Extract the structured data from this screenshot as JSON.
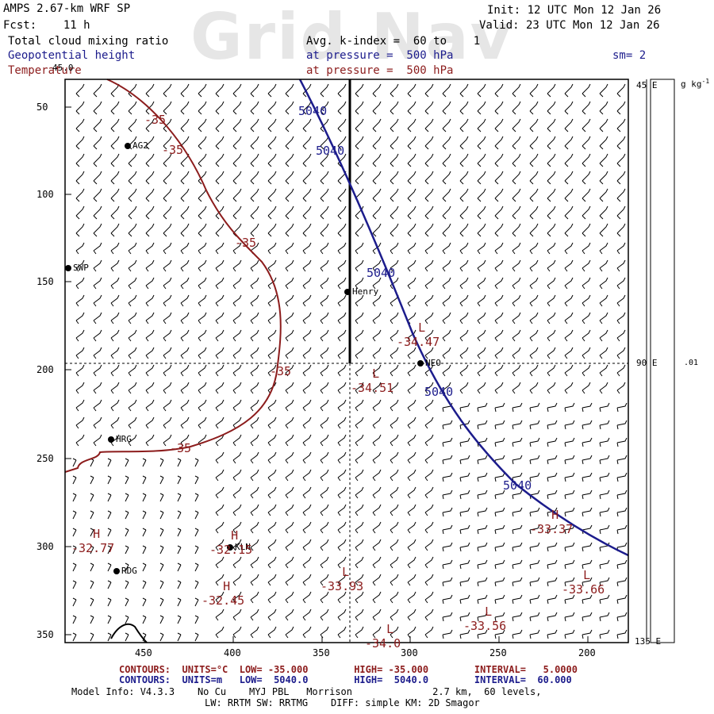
{
  "header": {
    "watermark": "Grid Nav",
    "model_line": "AMPS 2.67-km WRF SP",
    "fcst_line": "Fcst:    11 h",
    "init_line": "Init: 12 UTC Mon 12 Jan 26",
    "valid_line": "Valid: 23 UTC Mon 12 Jan 26",
    "field1": "Total cloud mixing ratio",
    "field2": "Geopotential height",
    "field3": "Temperature",
    "avg_line": "Avg. k-index =  60 to    1",
    "pressure_line_blue": "at pressure =  500 hPa",
    "pressure_line_red": "at pressure =  500 hPa",
    "sm_label": "sm= 2",
    "top_marker": "45.0"
  },
  "colorbar": {
    "units": "g kg",
    "units_sup": "-1",
    "tick_value": ".01"
  },
  "axes": {
    "y_ticks": [
      "50",
      "100",
      "150",
      "200",
      "250",
      "300",
      "350"
    ],
    "x_ticks": [
      "450",
      "400",
      "350",
      "300",
      "250",
      "200"
    ],
    "right_labels": [
      "45 E",
      "90 E",
      "135 E"
    ]
  },
  "stations": [
    {
      "name": "AG2"
    },
    {
      "name": "SWP"
    },
    {
      "name": "Henry"
    },
    {
      "name": "NEO"
    },
    {
      "name": "HRG"
    },
    {
      "name": "KLN"
    },
    {
      "name": "RDG"
    }
  ],
  "contour_labels": {
    "height": [
      "5040",
      "5040",
      "5040",
      "5040",
      "5040"
    ],
    "temperature": [
      "-35",
      "-35",
      "-35",
      "-35",
      "-35"
    ]
  },
  "extrema": [
    {
      "type": "L",
      "value": "-34.47"
    },
    {
      "type": "L",
      "value": "-34.51"
    },
    {
      "type": "H",
      "value": "-33.37"
    },
    {
      "type": "H",
      "value": "-32.77"
    },
    {
      "type": "H",
      "value": "-32.15"
    },
    {
      "type": "H",
      "value": "-32.45"
    },
    {
      "type": "L",
      "value": "-33.93"
    },
    {
      "type": "L",
      "value": "-33.66"
    },
    {
      "type": "L",
      "value": "-33.56"
    },
    {
      "type": "L",
      "value": "-34.0"
    }
  ],
  "footer": {
    "temp_contours": "CONTOURS:  UNITS=°C  LOW= -35.000        HIGH= -35.000        INTERVAL=   5.0000",
    "height_contours": "CONTOURS:  UNITS=m   LOW=  5040.0        HIGH=  5040.0        INTERVAL=  60.000",
    "model_info": "Model Info: V4.3.3    No Cu    MYJ PBL   Morrison              2.7 km,  60 levels,",
    "model_info2": "LW: RRTM SW: RRTMG    DIFF: simple KM: 2D Smagor"
  },
  "colors": {
    "height_contour": "#1c1c8c",
    "temp_contour": "#8c1c1c",
    "frame": "#000000"
  }
}
